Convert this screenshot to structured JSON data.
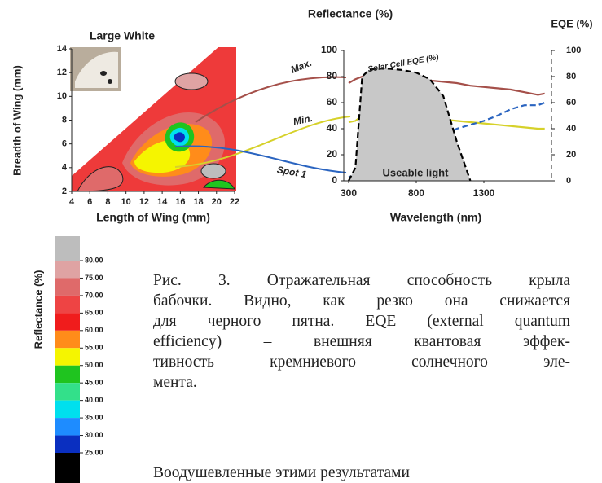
{
  "chart_data": [
    {
      "type": "contour",
      "title": "Large White",
      "x_label": "Length of Wing (mm)",
      "y_label": "Breadth of Wing (mm)",
      "xlim": [
        4,
        22
      ],
      "xticks": [
        4,
        6,
        8,
        10,
        12,
        14,
        16,
        18,
        20,
        22
      ],
      "ylim": [
        2,
        14
      ],
      "yticks": [
        2,
        4,
        6,
        8,
        10,
        12,
        14
      ],
      "colorbar": {
        "title": "Reflectance (%)",
        "ticks": [
          {
            "value": 80,
            "label": "80.00"
          },
          {
            "value": 75,
            "label": "75.00"
          },
          {
            "value": 70,
            "label": "70.00"
          },
          {
            "value": 65,
            "label": "65.00"
          },
          {
            "value": 60,
            "label": "60.00"
          },
          {
            "value": 55,
            "label": "55.00"
          },
          {
            "value": 50,
            "label": "50.00"
          },
          {
            "value": 45,
            "label": "45.00"
          },
          {
            "value": 40,
            "label": "40.00"
          },
          {
            "value": 35,
            "label": "35.00"
          },
          {
            "value": 30,
            "label": "30.00"
          },
          {
            "value": 25,
            "label": "25.00"
          }
        ],
        "colors": [
          "#bdbdbd",
          "#dfa3a3",
          "#df6a6a",
          "#ee4444",
          "#f01c1c",
          "#ff8c1a",
          "#f5f500",
          "#1fc41f",
          "#33e08a",
          "#00e0ee",
          "#1e8cff",
          "#0a2fc0",
          "#000000"
        ]
      }
    },
    {
      "type": "line",
      "title": "Reflectance (%)",
      "y2_label": "EQE (%)",
      "x_label": "Wavelength (nm)",
      "x": [
        300,
        350,
        400,
        450,
        500,
        600,
        700,
        800,
        900,
        1000,
        1100,
        1200,
        1300,
        1400,
        1500,
        1600,
        1700,
        1750
      ],
      "xlim": [
        300,
        1800
      ],
      "xticks": [
        300,
        800,
        1300
      ],
      "ylim": [
        0,
        100
      ],
      "yticks": [
        0,
        20,
        40,
        60,
        80,
        100
      ],
      "y2lim": [
        0,
        100
      ],
      "y2ticks": [
        0,
        20,
        40,
        60,
        80,
        100
      ],
      "series": [
        {
          "name": "Max.",
          "color": "#a5504a",
          "values": [
            75,
            78,
            80,
            82,
            82,
            80,
            79,
            78,
            77,
            76,
            75,
            73,
            72,
            71,
            70,
            68,
            66,
            67
          ]
        },
        {
          "name": "Min.",
          "color": "#d6d12a",
          "values": [
            45,
            46,
            50,
            52,
            52,
            51,
            50,
            49,
            48,
            47,
            46,
            45,
            44,
            43,
            42,
            41,
            40,
            40
          ]
        },
        {
          "name": "Spot 1",
          "color": "#2a64c0",
          "dashed": true,
          "values": [
            3,
            4,
            6,
            10,
            15,
            20,
            25,
            28,
            31,
            35,
            40,
            43,
            46,
            50,
            55,
            58,
            58,
            60
          ]
        },
        {
          "name": "Solar Cell EQE (%)",
          "color": "#000000",
          "fill": "#c8c8c8",
          "dashed": true,
          "axis": "y2",
          "values": [
            0,
            10,
            80,
            85,
            86,
            86,
            85,
            83,
            78,
            65,
            30,
            0,
            null,
            null,
            null,
            null,
            null,
            null
          ]
        }
      ],
      "annotation": "Useable light"
    }
  ],
  "caption": [
    "Рис. 3. Отражательная способность крыла",
    "бабочки. Видно, как резко она снижается",
    "для черного пятна. EQE (external quantum",
    "efficiency) – внешняя квантовая эффек-",
    "тивность кремниевого солнечного эле-",
    "мента."
  ],
  "body": "Воодушевленные этими результатами"
}
